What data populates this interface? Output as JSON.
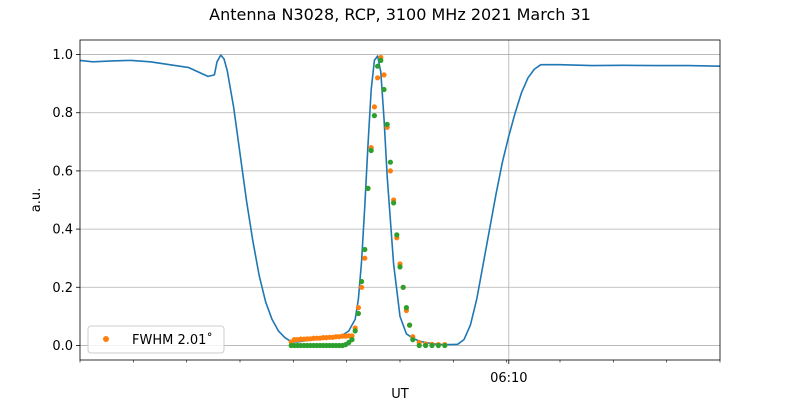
{
  "chart_data": {
    "type": "line",
    "title": "Antenna N3028, RCP, 3100 MHz 2021 March 31",
    "xlabel": "UT",
    "ylabel": "a.u.",
    "x_ticks": [
      {
        "value": 0.67,
        "label": "06:10"
      }
    ],
    "xlim": [
      0.0,
      1.0
    ],
    "ylim": [
      -0.05,
      1.05
    ],
    "y_ticks": [
      0.0,
      0.2,
      0.4,
      0.6,
      0.8,
      1.0
    ],
    "y_tick_labels": [
      "0.0",
      "0.2",
      "0.4",
      "0.6",
      "0.8",
      "1.0"
    ],
    "grid": true,
    "legend": {
      "location": "lower left",
      "entries": [
        {
          "label": "FWHM 2.01˚",
          "color": "#ff7f0e"
        }
      ]
    },
    "series": [
      {
        "color": "#1f77b4",
        "style": "line",
        "x": [
          0.0,
          0.02,
          0.05,
          0.08,
          0.11,
          0.14,
          0.17,
          0.19,
          0.2,
          0.21,
          0.214,
          0.22,
          0.225,
          0.23,
          0.24,
          0.25,
          0.26,
          0.27,
          0.28,
          0.29,
          0.3,
          0.31,
          0.32,
          0.33,
          0.34,
          0.35,
          0.36,
          0.37,
          0.38,
          0.39,
          0.4,
          0.41,
          0.42,
          0.43,
          0.435,
          0.44,
          0.445,
          0.45,
          0.455,
          0.46,
          0.465,
          0.47,
          0.475,
          0.48,
          0.49,
          0.5,
          0.51,
          0.52,
          0.53,
          0.54,
          0.55,
          0.56,
          0.57,
          0.58,
          0.59,
          0.6,
          0.61,
          0.62,
          0.63,
          0.64,
          0.65,
          0.66,
          0.67,
          0.68,
          0.69,
          0.7,
          0.71,
          0.72,
          0.75,
          0.8,
          0.85,
          0.9,
          0.95,
          1.0
        ],
        "y": [
          0.98,
          0.975,
          0.978,
          0.98,
          0.975,
          0.965,
          0.955,
          0.935,
          0.925,
          0.93,
          0.975,
          0.998,
          0.985,
          0.945,
          0.82,
          0.66,
          0.5,
          0.36,
          0.24,
          0.15,
          0.09,
          0.05,
          0.027,
          0.013,
          0.012,
          0.016,
          0.018,
          0.02,
          0.022,
          0.026,
          0.03,
          0.035,
          0.05,
          0.09,
          0.16,
          0.29,
          0.48,
          0.69,
          0.88,
          0.98,
          0.995,
          0.94,
          0.78,
          0.58,
          0.28,
          0.1,
          0.04,
          0.025,
          0.015,
          0.01,
          0.006,
          0.004,
          0.003,
          0.003,
          0.004,
          0.02,
          0.07,
          0.16,
          0.28,
          0.4,
          0.52,
          0.63,
          0.72,
          0.8,
          0.87,
          0.92,
          0.95,
          0.965,
          0.965,
          0.962,
          0.963,
          0.962,
          0.962,
          0.96
        ]
      },
      {
        "name": "FWHM 2.01˚",
        "color": "#ff7f0e",
        "style": "scatter",
        "x": [
          0.33,
          0.335,
          0.34,
          0.345,
          0.35,
          0.355,
          0.36,
          0.365,
          0.37,
          0.375,
          0.38,
          0.385,
          0.39,
          0.395,
          0.4,
          0.405,
          0.41,
          0.415,
          0.42,
          0.425,
          0.43,
          0.435,
          0.44,
          0.445,
          0.45,
          0.455,
          0.46,
          0.465,
          0.47,
          0.475,
          0.48,
          0.485,
          0.49,
          0.495,
          0.5,
          0.505,
          0.51,
          0.515,
          0.52,
          0.53,
          0.54,
          0.55,
          0.56,
          0.57
        ],
        "y": [
          0.012,
          0.02,
          0.02,
          0.022,
          0.022,
          0.023,
          0.023,
          0.025,
          0.025,
          0.025,
          0.027,
          0.027,
          0.028,
          0.028,
          0.03,
          0.03,
          0.032,
          0.032,
          0.033,
          0.033,
          0.06,
          0.13,
          0.2,
          0.3,
          0.54,
          0.68,
          0.82,
          0.92,
          0.99,
          0.93,
          0.75,
          0.6,
          0.5,
          0.37,
          0.28,
          0.2,
          0.12,
          0.07,
          0.03,
          0.01,
          0.005,
          0.004,
          0.003,
          0.003
        ]
      },
      {
        "color": "#2ca02c",
        "style": "scatter",
        "x": [
          0.33,
          0.335,
          0.34,
          0.345,
          0.35,
          0.355,
          0.36,
          0.365,
          0.37,
          0.375,
          0.38,
          0.385,
          0.39,
          0.395,
          0.4,
          0.405,
          0.41,
          0.415,
          0.42,
          0.425,
          0.43,
          0.435,
          0.44,
          0.445,
          0.45,
          0.455,
          0.46,
          0.465,
          0.47,
          0.475,
          0.48,
          0.485,
          0.49,
          0.495,
          0.5,
          0.505,
          0.51,
          0.515,
          0.52,
          0.53,
          0.54,
          0.55,
          0.56,
          0.57
        ],
        "y": [
          0.0,
          0.0,
          0.0,
          0.0,
          0.0,
          0.0,
          0.0,
          0.0,
          0.0,
          0.0,
          0.0,
          0.0,
          0.0,
          0.0,
          0.0,
          0.0,
          0.0,
          0.003,
          0.01,
          0.02,
          0.05,
          0.11,
          0.22,
          0.33,
          0.54,
          0.67,
          0.79,
          0.96,
          0.98,
          0.88,
          0.76,
          0.63,
          0.49,
          0.38,
          0.27,
          0.2,
          0.13,
          0.07,
          0.02,
          0.0,
          0.0,
          0.0,
          0.0,
          0.0
        ]
      }
    ]
  }
}
